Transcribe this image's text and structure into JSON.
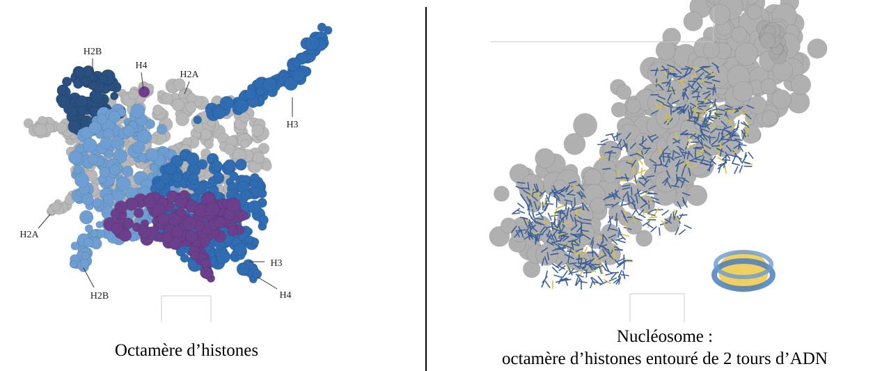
{
  "left": {
    "labels": [
      "H2B",
      "H4",
      "H2A",
      "H3",
      "H2A",
      "H2B",
      "H3",
      "H4"
    ],
    "caption": "Octamère d’histones"
  },
  "right": {
    "caption_lines": [
      "Nucléosome :",
      "octamère d’histones entouré de 2 tours d’ADN"
    ]
  }
}
